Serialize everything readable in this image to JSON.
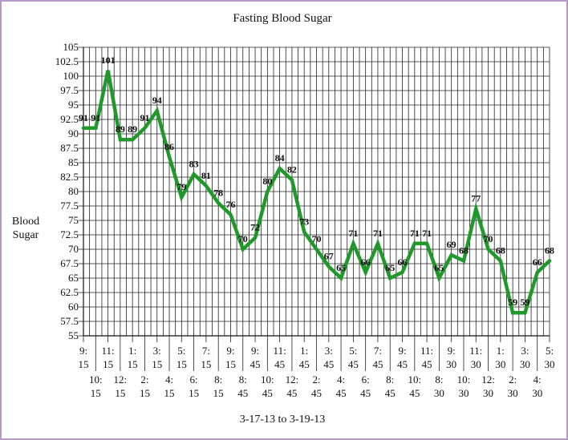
{
  "chart_data": {
    "type": "line",
    "title": "Fasting Blood Sugar",
    "xlabel": "3-17-13 to 3-19-13",
    "ylabel": "Blood Sugar",
    "ylim": [
      55,
      105
    ],
    "y_step": 2.5,
    "y_ticks": [
      "55",
      "57.5",
      "60",
      "62.5",
      "65",
      "67.5",
      "70",
      "72.5",
      "75",
      "77.5",
      "80",
      "82.5",
      "85",
      "87.5",
      "90",
      "92.5",
      "95",
      "97.5",
      "100",
      "102.5",
      "105"
    ],
    "x_tick_labels": [
      [
        "9:",
        "15"
      ],
      [
        "10:",
        "15"
      ],
      [
        "11:",
        "15"
      ],
      [
        "12:",
        "15"
      ],
      [
        "1:",
        "15"
      ],
      [
        "2:",
        "15"
      ],
      [
        "3:",
        "15"
      ],
      [
        "4:",
        "15"
      ],
      [
        "5:",
        "15"
      ],
      [
        "6:",
        "15"
      ],
      [
        "7:",
        "15"
      ],
      [
        "8:",
        "15"
      ],
      [
        "9:",
        "15"
      ],
      [
        "8:",
        "45"
      ],
      [
        "9:",
        "45"
      ],
      [
        "10:",
        "45"
      ],
      [
        "11:",
        "45"
      ],
      [
        "12:",
        "45"
      ],
      [
        "1:",
        "45"
      ],
      [
        "2:",
        "45"
      ],
      [
        "3:",
        "45"
      ],
      [
        "4:",
        "45"
      ],
      [
        "5:",
        "45"
      ],
      [
        "6:",
        "45"
      ],
      [
        "7:",
        "45"
      ],
      [
        "8:",
        "45"
      ],
      [
        "9:",
        "45"
      ],
      [
        "10:",
        "45"
      ],
      [
        "11:",
        "45"
      ],
      [
        "8:",
        "30"
      ],
      [
        "9:",
        "30"
      ],
      [
        "10:",
        "30"
      ],
      [
        "11:",
        "30"
      ],
      [
        "12:",
        "30"
      ],
      [
        "1:",
        "30"
      ],
      [
        "2:",
        "30"
      ],
      [
        "3:",
        "30"
      ],
      [
        "4:",
        "30"
      ],
      [
        "5:",
        "30"
      ]
    ],
    "grid": true,
    "series": [
      {
        "name": "",
        "color": "#1f9a2a",
        "values": [
          91,
          91,
          101,
          89,
          89,
          91,
          94,
          86,
          79,
          83,
          81,
          78,
          76,
          70,
          72,
          80,
          84,
          82,
          73,
          70,
          67,
          65,
          71,
          66,
          71,
          65,
          66,
          71,
          71,
          65,
          69,
          68,
          77,
          70,
          68,
          59,
          59,
          66,
          68
        ],
        "data_labels": [
          "91",
          "91",
          "101",
          "89",
          "89",
          "91",
          "94",
          "86",
          "79",
          "83",
          "81",
          "78",
          "76",
          "70",
          "72",
          "80",
          "84",
          "82",
          "73",
          "70",
          "67",
          "65",
          "71",
          "66",
          "71",
          "65",
          "66",
          "71",
          "71",
          "65",
          "69",
          "68",
          "77",
          "70",
          "68",
          "59",
          "59",
          "66",
          "68"
        ]
      }
    ]
  }
}
